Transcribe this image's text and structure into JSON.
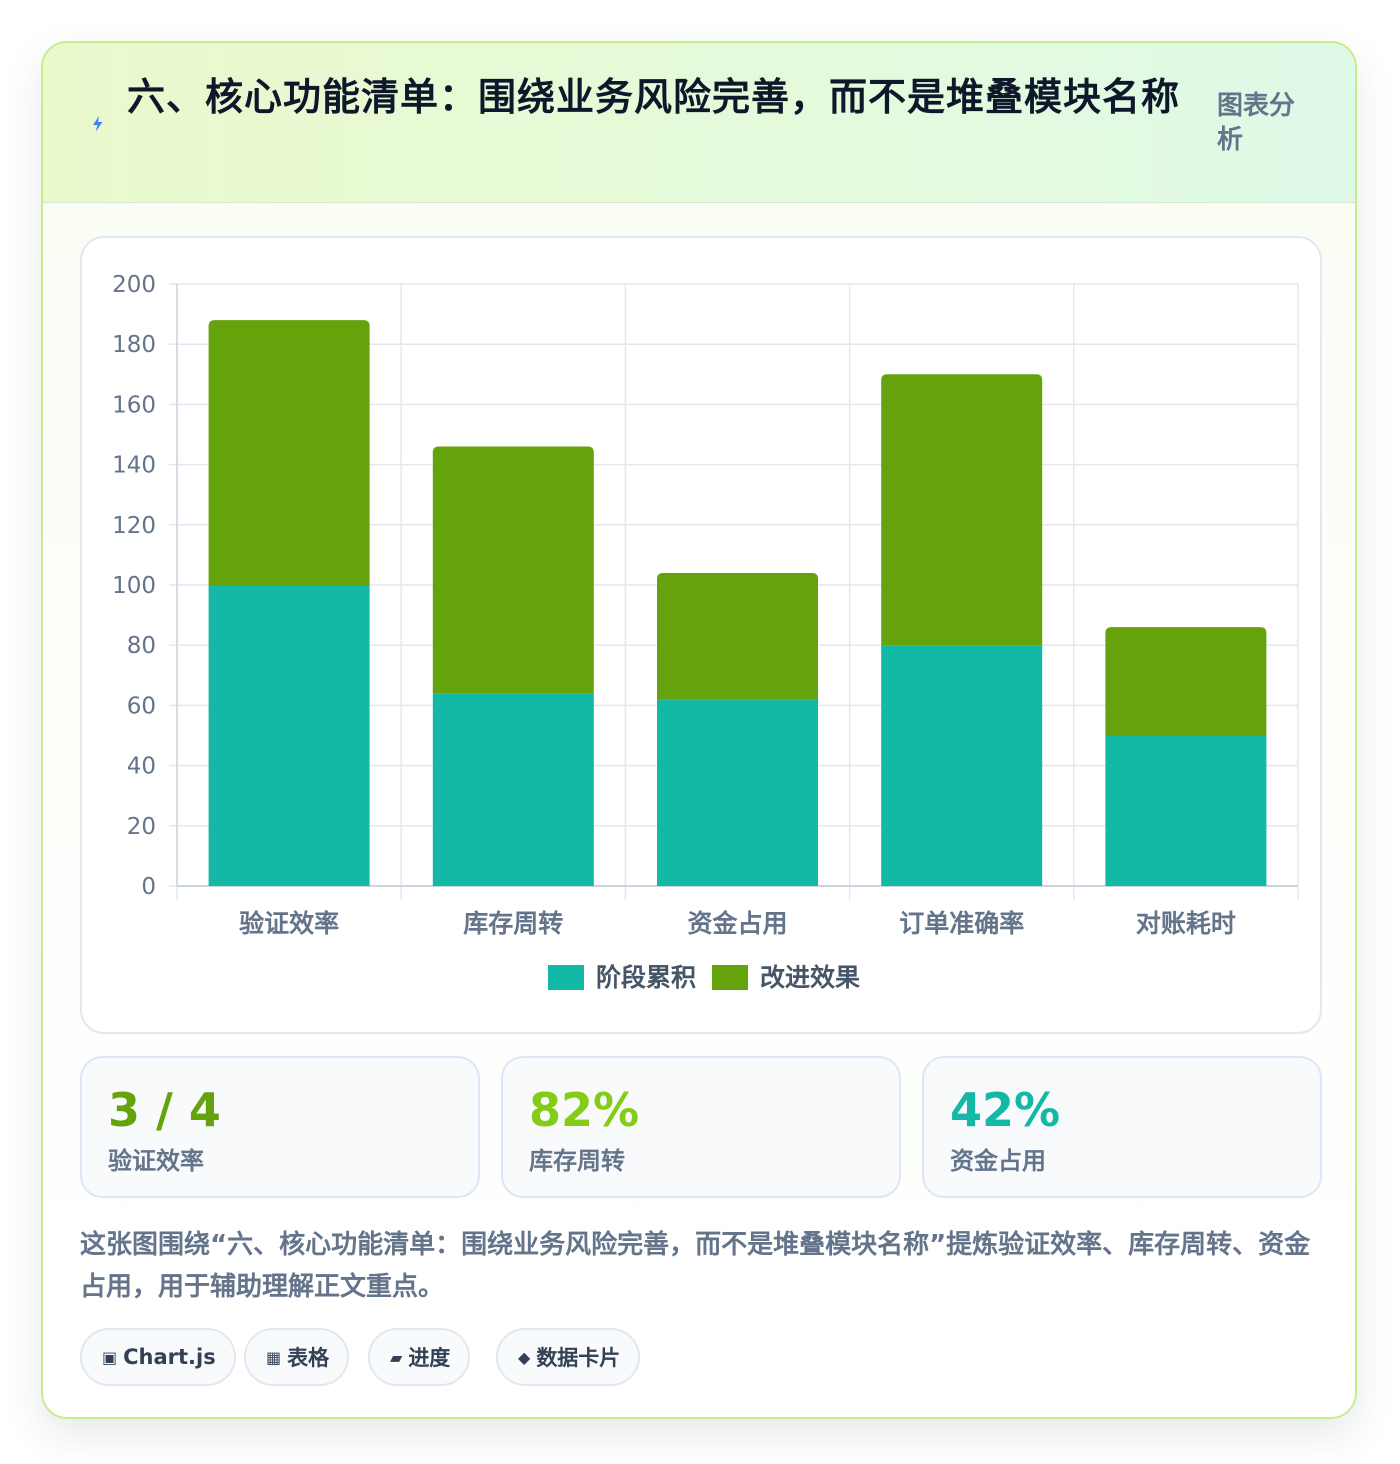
{
  "header": {
    "title": "六、核心功能清单：围绕业务风险完善，而不是堆叠模块名称",
    "tag": "图表分析"
  },
  "chart_data": {
    "type": "bar",
    "stacked": true,
    "categories": [
      "验证效率",
      "库存周转",
      "资金占用",
      "订单准确率",
      "对账耗时"
    ],
    "series": [
      {
        "name": "阶段累积",
        "color": "#14b8a6",
        "values": [
          100,
          64,
          62,
          80,
          50
        ]
      },
      {
        "name": "改进效果",
        "color": "#65a30d",
        "values": [
          88,
          82,
          42,
          90,
          36
        ]
      }
    ],
    "ylim": [
      0,
      200
    ],
    "yticks": [
      0,
      20,
      40,
      60,
      80,
      100,
      120,
      140,
      160,
      180,
      200
    ],
    "grid": true,
    "legend_position": "bottom"
  },
  "stats": [
    {
      "value": "3 / 4",
      "label": "验证效率",
      "color": "#65a30d"
    },
    {
      "value": "82%",
      "label": "库存周转",
      "color": "#84cc16"
    },
    {
      "value": "42%",
      "label": "资金占用",
      "color": "#14b8a6"
    }
  ],
  "caption": "这张图围绕“六、核心功能清单：围绕业务风险完善，而不是堆叠模块名称”提炼验证效率、库存周转、资金占用，用于辅助理解正文重点。",
  "chips": [
    {
      "icon": "▣",
      "icon_name": "chart-icon",
      "label": "Chart.js"
    },
    {
      "icon": "▦",
      "icon_name": "table-icon",
      "label": "表格"
    },
    {
      "icon": "▰",
      "icon_name": "progress-icon",
      "label": "进度"
    },
    {
      "icon": "◆",
      "icon_name": "data-card-icon",
      "label": "数据卡片"
    }
  ]
}
